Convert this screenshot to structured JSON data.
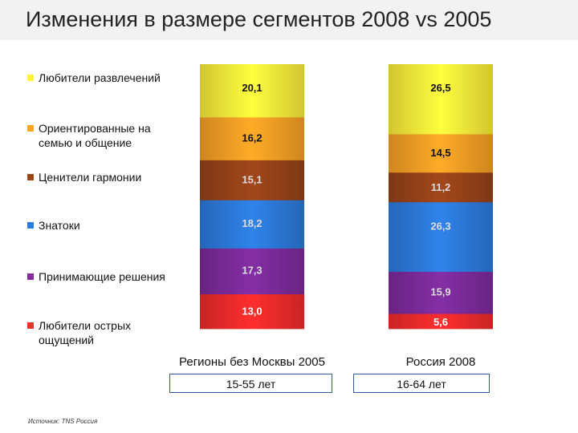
{
  "header": {
    "title": "Изменения в размере сегментов 2008 vs 2005"
  },
  "footer": {
    "source": "Источник: TNS Россия"
  },
  "colors": {
    "header_bg": "#f2f2f2",
    "box_border": "#335a9e"
  },
  "chart_data": {
    "type": "bar",
    "stacked": true,
    "normalized_100": true,
    "categories": [
      "Регионы без Москвы 2005",
      "Россия 2008"
    ],
    "age_ranges": [
      "15-55 лет",
      "16-64 лет"
    ],
    "legend_placement": "left",
    "grid": false,
    "series": [
      {
        "name": "Любители развлечений",
        "color": "#fff23c",
        "values": [
          20.1,
          26.5
        ],
        "labels": [
          "20,1",
          "26,5"
        ]
      },
      {
        "name": "Ориентированные на семью и общение",
        "color": "#fca325",
        "values": [
          16.2,
          14.5
        ],
        "labels": [
          "16,2",
          "14,5"
        ]
      },
      {
        "name": "Ценители гармонии",
        "color": "#9a4419",
        "values": [
          15.1,
          11.2
        ],
        "labels": [
          "15,1",
          "11,2"
        ]
      },
      {
        "name": "Знатоки",
        "color": "#2d7de0",
        "values": [
          18.2,
          26.3
        ],
        "labels": [
          "18,2",
          "26,3"
        ]
      },
      {
        "name": "Принимающие решения",
        "color": "#7f2c9e",
        "values": [
          17.3,
          15.9
        ],
        "labels": [
          "17,3",
          "15,9"
        ]
      },
      {
        "name": "Любители острых ощущений",
        "color": "#f42c2c",
        "values": [
          13.0,
          5.6
        ],
        "labels": [
          "13,0",
          "5,6"
        ]
      }
    ]
  }
}
